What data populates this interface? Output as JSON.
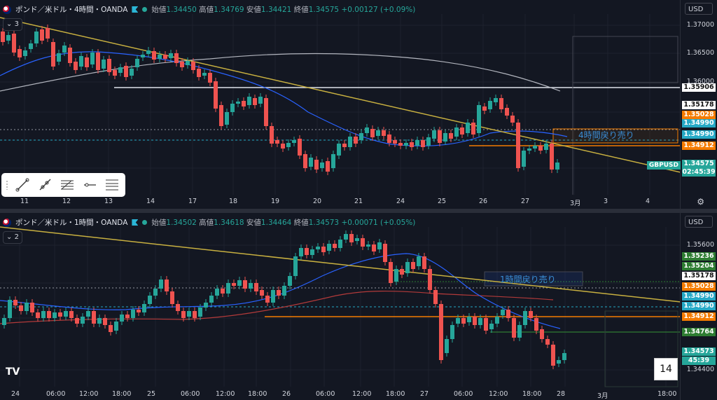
{
  "panel1": {
    "symbol": "ポンド／米ドル・4時間・OANDA",
    "open_label": "始値",
    "open": "1.34450",
    "high_label": "高値",
    "high": "1.34769",
    "low_label": "安値",
    "low": "1.34421",
    "close_label": "終値",
    "close": "1.34575",
    "change": "+0.00127 (+0.09%)",
    "indicator_count": "3",
    "currency": "USD",
    "y_ticks": [
      "1.37000",
      "1.36500",
      "1.36000"
    ],
    "price_tags": [
      {
        "text": "1.35906",
        "color": "#ffffff"
      },
      {
        "text": "1.35178",
        "color": "#ffffff"
      },
      {
        "text": "1.35028",
        "color": "#f57c00"
      },
      {
        "text": "1.34990",
        "color": "#26a9c6"
      },
      {
        "text": "1.34990",
        "color": "#26a9c6"
      },
      {
        "text": "1.34912",
        "color": "#f57c00"
      },
      {
        "text": "1.34575",
        "color": "#26a69a"
      },
      {
        "text": "02:45:39",
        "color": "#26a69a"
      }
    ],
    "pair_badge": "GBPUSD",
    "annotation": "4時間戻り売り",
    "x_labels": [
      "11",
      "12",
      "13",
      "14",
      "17",
      "18",
      "19",
      "20",
      "21",
      "24",
      "25",
      "26",
      "27",
      "3月",
      "3",
      "4"
    ],
    "settings_icon": "gear-icon"
  },
  "panel2": {
    "symbol": "ポンド／米ドル・1時間・OANDA",
    "open_label": "始値",
    "open": "1.34502",
    "high_label": "高値",
    "high": "1.34618",
    "low_label": "安値",
    "low": "1.34464",
    "close_label": "終値",
    "close": "1.34573",
    "change": "+0.00071 (+0.05%)",
    "indicator_count": "2",
    "currency": "USD",
    "y_ticks": [
      "1.35600",
      "1.34400"
    ],
    "price_tags": [
      {
        "text": "1.35236",
        "color": "#2e7d32"
      },
      {
        "text": "1.35204",
        "color": "#2e7d32"
      },
      {
        "text": "1.35178",
        "color": "#ffffff"
      },
      {
        "text": "1.35028",
        "color": "#f57c00"
      },
      {
        "text": "1.34990",
        "color": "#26a9c6"
      },
      {
        "text": "1.34990",
        "color": "#26a9c6"
      },
      {
        "text": "1.34912",
        "color": "#f57c00"
      },
      {
        "text": "1.34764",
        "color": "#2e7d32"
      },
      {
        "text": "1.34573",
        "color": "#26a69a"
      },
      {
        "text": "45:39",
        "color": "#26a69a"
      }
    ],
    "annotation": "1時間戻り売り",
    "x_labels": [
      "24",
      "06:00",
      "12:00",
      "18:00",
      "25",
      "06:00",
      "12:00",
      "18:00",
      "26",
      "06:00",
      "12:00",
      "18:00",
      "27",
      "06:00",
      "12:00",
      "18:00",
      "28",
      "3月",
      "18:00"
    ]
  },
  "drawing_toolbar": {
    "tools": [
      "trend-line-tool",
      "ray-tool",
      "fib-tool",
      "horizontal-ray-tool",
      "parallel-channel-tool"
    ]
  },
  "page_number": "14",
  "logo": "TV"
}
